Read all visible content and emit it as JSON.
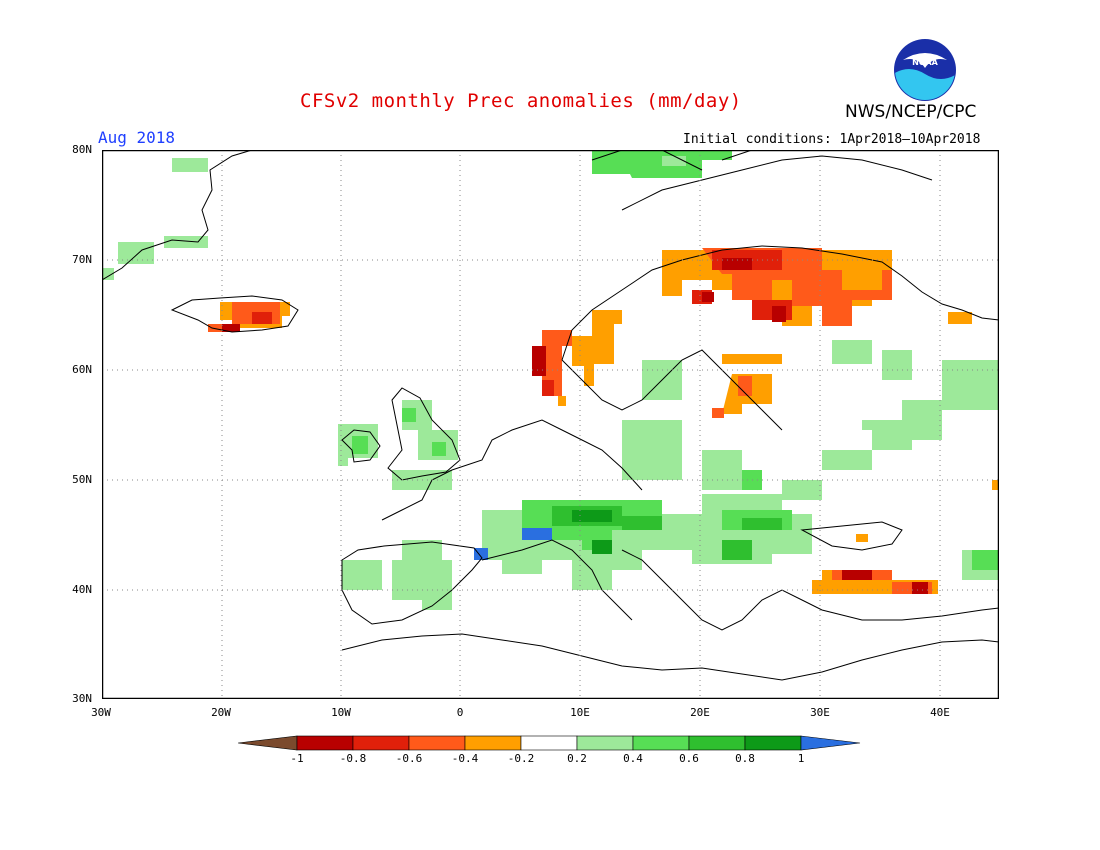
{
  "header": {
    "title": "CFSv2 monthly Prec anomalies (mm/day)",
    "agency": "NWS/NCEP/CPC",
    "month": "Aug 2018",
    "initial_conditions": "Initial conditions: 1Apr2018–10Apr2018",
    "logo_text": "NOAA"
  },
  "map": {
    "region": "Europe",
    "lon_range": [
      -30,
      45
    ],
    "lat_range": [
      30,
      80
    ],
    "lat_labels": [
      "80N",
      "70N",
      "60N",
      "50N",
      "40N",
      "30N"
    ],
    "lon_labels": [
      "30W",
      "20W",
      "10W",
      "0",
      "10E",
      "20E",
      "30E",
      "40E"
    ],
    "gridlines": "dotted"
  },
  "legend": {
    "bins": [
      {
        "range": "< -1",
        "color": "#7b4a2d"
      },
      {
        "range": "-1 to -0.8",
        "color": "#b80000"
      },
      {
        "range": "-0.8 to -0.6",
        "color": "#e0200a"
      },
      {
        "range": "-0.6 to -0.4",
        "color": "#ff5a1a"
      },
      {
        "range": "-0.4 to -0.2",
        "color": "#ff9f00"
      },
      {
        "range": "-0.2 to 0.2",
        "color": "#ffffff"
      },
      {
        "range": "0.2 to 0.4",
        "color": "#9de99a"
      },
      {
        "range": "0.4 to 0.6",
        "color": "#57de55"
      },
      {
        "range": "0.6 to 0.8",
        "color": "#2fbf2f"
      },
      {
        "range": "0.8 to 1",
        "color": "#0d9a18"
      },
      {
        "range": "> 1",
        "color": "#2a6fe0"
      }
    ],
    "tick_labels": [
      "-1",
      "-0.8",
      "-0.6",
      "-0.4",
      "-0.2",
      "0.2",
      "0.4",
      "0.6",
      "0.8",
      "1"
    ]
  }
}
